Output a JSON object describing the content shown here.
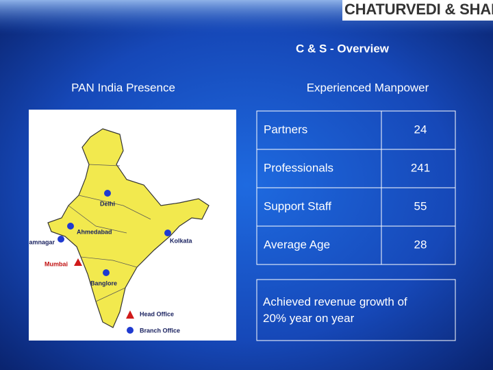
{
  "header": {
    "logo": "CHATURVEDI & SHAH",
    "title": "C & S - Overview"
  },
  "map": {
    "title": "PAN India Presence",
    "cities": [
      "Delhi",
      "Ahmedabad",
      "Jamnagar",
      "Mumbai",
      "Kolkata",
      "Banglore"
    ],
    "legend": [
      "Head Office",
      "Branch Office"
    ]
  },
  "manpower": {
    "title": "Experienced Manpower",
    "rows": [
      [
        "Partners",
        24
      ],
      [
        "Professionals",
        241
      ],
      [
        "Support Staff",
        55
      ],
      [
        "Average Age",
        28
      ]
    ],
    "note": "Achieved revenue growth of 20% year on year"
  }
}
